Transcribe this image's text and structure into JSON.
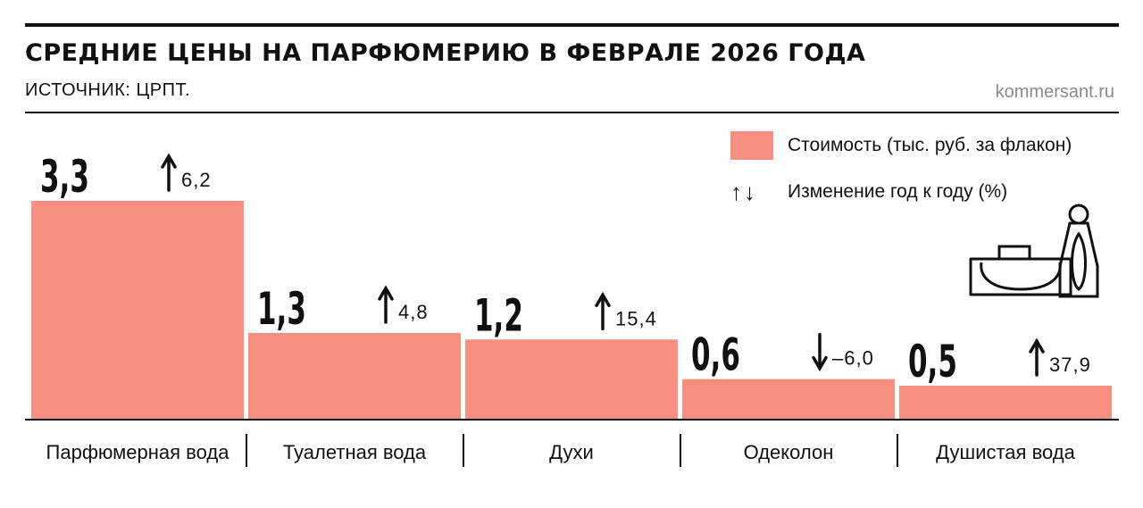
{
  "header": {
    "title": "СРЕДНИЕ ЦЕНЫ НА ПАРФЮМЕРИЮ В ФЕВРАЛЕ 2026 ГОДА",
    "source": "ИСТОЧНИК: ЦРПТ.",
    "site": "kommersant.ru"
  },
  "legend": {
    "cost_label": "Стоимость (тыс. руб. за флакон)",
    "change_label": "Изменение год к году (%)",
    "change_arrows": "↑↓"
  },
  "colors": {
    "bar": "#f98f80",
    "text": "#111111",
    "muted": "#8a8a8a"
  },
  "icons": [
    "perfume-bottles-icon",
    "arrow-up-icon",
    "arrow-down-icon"
  ],
  "chart_data": {
    "type": "bar",
    "title": "СРЕДНИЕ ЦЕНЫ НА ПАРФЮМЕРИЮ В ФЕВРАЛЕ 2026 ГОДА",
    "categories": [
      "Парфюмерная вода",
      "Туалетная вода",
      "Духи",
      "Одеколон",
      "Душистая вода"
    ],
    "series": [
      {
        "name": "Стоимость (тыс. руб. за флакон)",
        "values": [
          3.3,
          1.3,
          1.2,
          0.6,
          0.5
        ]
      },
      {
        "name": "Изменение год к году (%)",
        "values": [
          6.2,
          4.8,
          15.4,
          -6.0,
          37.9
        ]
      }
    ],
    "value_labels": [
      "3,3",
      "1,3",
      "1,2",
      "0,6",
      "0,5"
    ],
    "change_labels": [
      "6,2",
      "4,8",
      "15,4",
      "–6,0",
      "37,9"
    ],
    "ylim": [
      0,
      3.3
    ],
    "grid": false,
    "legend_position": "top-right"
  }
}
